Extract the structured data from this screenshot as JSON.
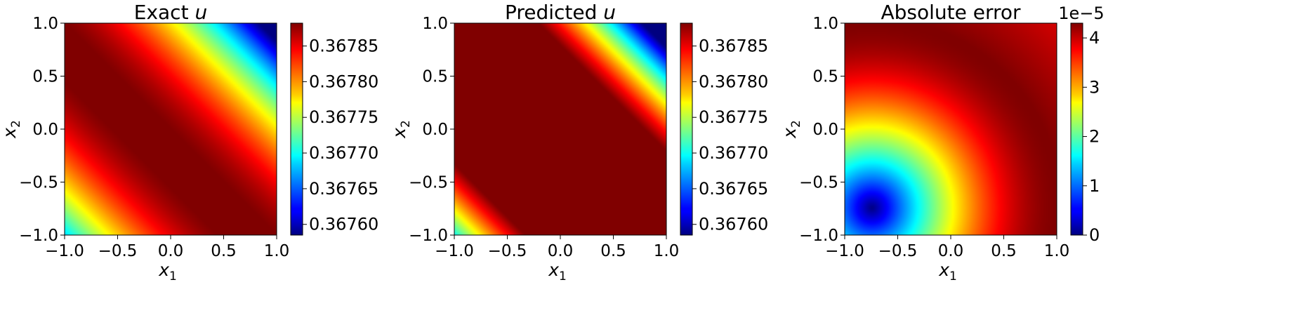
{
  "chart_data": [
    {
      "type": "heatmap",
      "title": "Exact",
      "title_var": "u",
      "xlabel": "x",
      "xlabel_sub": "1",
      "ylabel": "x",
      "ylabel_sub": "2",
      "xlim": [
        -1.0,
        1.0
      ],
      "ylim": [
        -1.0,
        1.0
      ],
      "xticks": [
        "−1.0",
        "−0.5",
        "0.0",
        "0.5",
        "1.0"
      ],
      "yticks": [
        "−1.0",
        "−0.5",
        "0.0",
        "0.5",
        "1.0"
      ],
      "colormap": "jet",
      "colorbar": {
        "min": 0.367585,
        "max": 0.367882,
        "ticks": [
          0.3676,
          0.36765,
          0.3677,
          0.36775,
          0.3678,
          0.36785
        ],
        "tick_labels": [
          "0.36760",
          "0.36765",
          "0.36770",
          "0.36775",
          "0.36780",
          "0.36785"
        ],
        "offset_label": ""
      },
      "field": "ridge along x1 + x2 = 0, decreasing toward corners (-1,-1) and (1,1)"
    },
    {
      "type": "heatmap",
      "title": "Predicted",
      "title_var": "u",
      "xlabel": "x",
      "xlabel_sub": "1",
      "ylabel": "x",
      "ylabel_sub": "2",
      "xlim": [
        -1.0,
        1.0
      ],
      "ylim": [
        -1.0,
        1.0
      ],
      "xticks": [
        "−1.0",
        "−0.5",
        "0.0",
        "0.5",
        "1.0"
      ],
      "yticks": [
        "−1.0",
        "−0.5",
        "0.0",
        "0.5",
        "1.0"
      ],
      "colormap": "jet",
      "colorbar": {
        "min": 0.367585,
        "max": 0.367882,
        "ticks": [
          0.3676,
          0.36765,
          0.3677,
          0.36775,
          0.3678,
          0.36785
        ],
        "tick_labels": [
          "0.36760",
          "0.36765",
          "0.36770",
          "0.36775",
          "0.36780",
          "0.36785"
        ],
        "offset_label": ""
      },
      "field": "wide saturated band along x1 + x2 = 0, decreasing toward corners (-1,-1) and (1,1)"
    },
    {
      "type": "heatmap",
      "title": "Absolute error",
      "title_var": "",
      "xlabel": "x",
      "xlabel_sub": "1",
      "ylabel": "x",
      "ylabel_sub": "2",
      "xlim": [
        -1.0,
        1.0
      ],
      "ylim": [
        -1.0,
        1.0
      ],
      "xticks": [
        "−1.0",
        "−0.5",
        "0.0",
        "0.5",
        "1.0"
      ],
      "yticks": [
        "−1.0",
        "−0.5",
        "0.0",
        "0.5",
        "1.0"
      ],
      "colormap": "jet",
      "colorbar": {
        "min": 0,
        "max": 4.3,
        "ticks": [
          0,
          1,
          2,
          3,
          4
        ],
        "tick_labels": [
          "0",
          "1",
          "2",
          "3",
          "4"
        ],
        "offset_label": "1e−5"
      },
      "field": "radial increase from near zero around (-0.75,-0.75) to maximum ~4.3e-5 near (0.6, 0.45)"
    }
  ]
}
